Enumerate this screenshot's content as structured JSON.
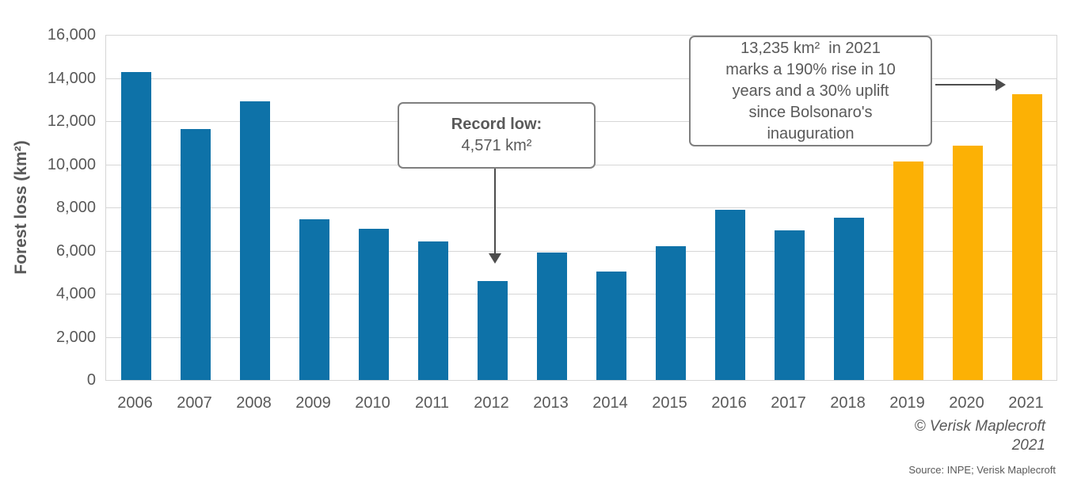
{
  "chart_data": {
    "type": "bar",
    "title": "",
    "xlabel": "",
    "ylabel": "Forest loss (km²)",
    "categories": [
      "2006",
      "2007",
      "2008",
      "2009",
      "2010",
      "2011",
      "2012",
      "2013",
      "2014",
      "2015",
      "2016",
      "2017",
      "2018",
      "2019",
      "2020",
      "2021"
    ],
    "values": [
      14286,
      11651,
      12911,
      7464,
      7000,
      6418,
      4571,
      5891,
      5012,
      6207,
      7893,
      6947,
      7536,
      10129,
      10851,
      13235
    ],
    "orange_from_index": 13,
    "ylim": [
      0,
      16000
    ],
    "ytick_values": [
      0,
      2000,
      4000,
      6000,
      8000,
      10000,
      12000,
      14000,
      16000
    ],
    "ytick_labels": [
      "0",
      "2,000",
      "4,000",
      "6,000",
      "8,000",
      "10,000",
      "12,000",
      "14,000",
      "16,000"
    ],
    "grid": true,
    "legend_position": "none"
  },
  "annotations": {
    "record_low": {
      "title": "Record low:",
      "value": "4,571 km²",
      "points_to_year": "2012"
    },
    "rise_2021": {
      "lines": [
        "13,235 km²  in 2021",
        "marks a 190% rise in 10",
        "years and a 30% uplift",
        "since Bolsonaro's",
        "inauguration"
      ],
      "points_to_year": "2021"
    }
  },
  "footer": {
    "copyright_line1": "© Verisk Maplecroft",
    "copyright_line2": "2021",
    "source": "Source: INPE; Verisk Maplecroft"
  },
  "colors": {
    "bar_blue": "#0E72A8",
    "bar_orange": "#FCB105",
    "text": "#595959",
    "grid": "#D6D6D6",
    "box_border": "#7F7F7F",
    "arrow": "#4D4D4D"
  }
}
